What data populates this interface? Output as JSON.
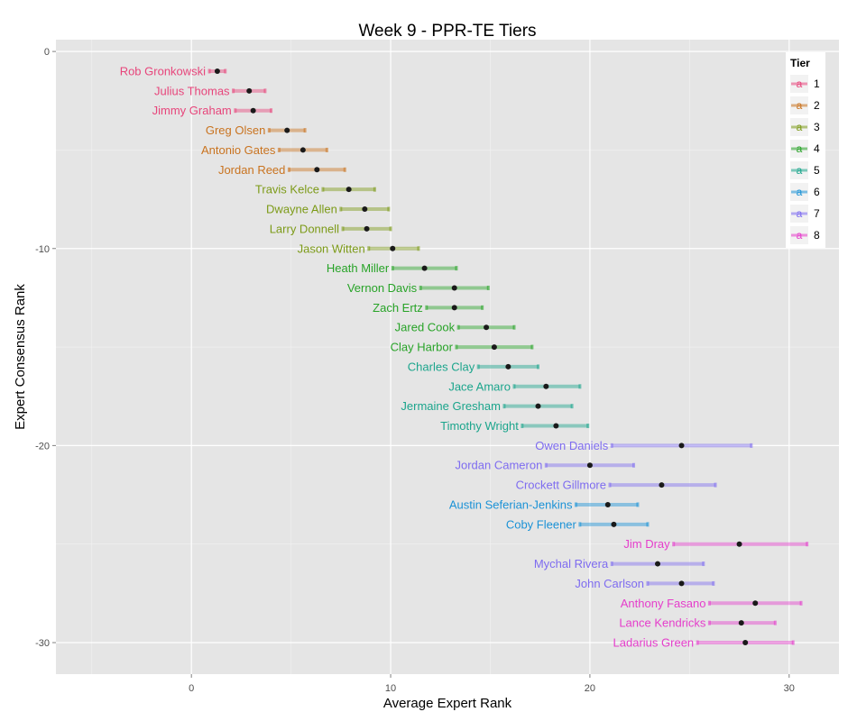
{
  "chart_data": {
    "type": "scatter",
    "title": "Week 9 - PPR-TE Tiers",
    "xlabel": "Average Expert Rank",
    "ylabel": "Expert Consensus Rank",
    "xlim": [
      -6.8,
      32.5
    ],
    "ylim": [
      -31.6,
      0.6
    ],
    "x_ticks": [
      0,
      10,
      20,
      30
    ],
    "y_ticks": [
      0,
      -10,
      -20,
      -30
    ],
    "grid": true,
    "legend_position": "top-right",
    "legend": {
      "title": "Tier",
      "key_glyph": "a",
      "entries": [
        "1",
        "2",
        "3",
        "4",
        "5",
        "6",
        "7",
        "8"
      ]
    },
    "tier_colors": {
      "1": "#E7457B",
      "2": "#C9731F",
      "3": "#7C9A17",
      "4": "#27A327",
      "5": "#1BA58C",
      "6": "#1B92D6",
      "7": "#7E6CF0",
      "8": "#E53DCB"
    },
    "series": [
      {
        "name": "Rob Gronkowski",
        "tier": 1,
        "rank": -1,
        "avg": 1.3,
        "low": 0.9,
        "high": 1.7
      },
      {
        "name": "Julius Thomas",
        "tier": 1,
        "rank": -2,
        "avg": 2.9,
        "low": 2.1,
        "high": 3.7
      },
      {
        "name": "Jimmy Graham",
        "tier": 1,
        "rank": -3,
        "avg": 3.1,
        "low": 2.2,
        "high": 4.0
      },
      {
        "name": "Greg Olsen",
        "tier": 2,
        "rank": -4,
        "avg": 4.8,
        "low": 3.9,
        "high": 5.7
      },
      {
        "name": "Antonio Gates",
        "tier": 2,
        "rank": -5,
        "avg": 5.6,
        "low": 4.4,
        "high": 6.8
      },
      {
        "name": "Jordan Reed",
        "tier": 2,
        "rank": -6,
        "avg": 6.3,
        "low": 4.9,
        "high": 7.7
      },
      {
        "name": "Travis Kelce",
        "tier": 3,
        "rank": -7,
        "avg": 7.9,
        "low": 6.6,
        "high": 9.2
      },
      {
        "name": "Dwayne Allen",
        "tier": 3,
        "rank": -8,
        "avg": 8.7,
        "low": 7.5,
        "high": 9.9
      },
      {
        "name": "Larry Donnell",
        "tier": 3,
        "rank": -9,
        "avg": 8.8,
        "low": 7.6,
        "high": 10.0
      },
      {
        "name": "Jason Witten",
        "tier": 3,
        "rank": -10,
        "avg": 10.1,
        "low": 8.9,
        "high": 11.4
      },
      {
        "name": "Heath Miller",
        "tier": 4,
        "rank": -11,
        "avg": 11.7,
        "low": 10.1,
        "high": 13.3
      },
      {
        "name": "Vernon Davis",
        "tier": 4,
        "rank": -12,
        "avg": 13.2,
        "low": 11.5,
        "high": 14.9
      },
      {
        "name": "Zach Ertz",
        "tier": 4,
        "rank": -13,
        "avg": 13.2,
        "low": 11.8,
        "high": 14.6
      },
      {
        "name": "Jared Cook",
        "tier": 4,
        "rank": -14,
        "avg": 14.8,
        "low": 13.4,
        "high": 16.2
      },
      {
        "name": "Clay Harbor",
        "tier": 4,
        "rank": -15,
        "avg": 15.2,
        "low": 13.3,
        "high": 17.1
      },
      {
        "name": "Charles Clay",
        "tier": 5,
        "rank": -16,
        "avg": 15.9,
        "low": 14.4,
        "high": 17.4
      },
      {
        "name": "Jace Amaro",
        "tier": 5,
        "rank": -17,
        "avg": 17.8,
        "low": 16.2,
        "high": 19.5
      },
      {
        "name": "Jermaine Gresham",
        "tier": 5,
        "rank": -18,
        "avg": 17.4,
        "low": 15.7,
        "high": 19.1
      },
      {
        "name": "Timothy Wright",
        "tier": 5,
        "rank": -19,
        "avg": 18.3,
        "low": 16.6,
        "high": 19.9
      },
      {
        "name": "Owen Daniels",
        "tier": 7,
        "rank": -20,
        "avg": 24.6,
        "low": 21.1,
        "high": 28.1
      },
      {
        "name": "Jordan Cameron",
        "tier": 7,
        "rank": -21,
        "avg": 20.0,
        "low": 17.8,
        "high": 22.2
      },
      {
        "name": "Crockett Gillmore",
        "tier": 7,
        "rank": -22,
        "avg": 23.6,
        "low": 21.0,
        "high": 26.3
      },
      {
        "name": "Austin Seferian-Jenkins",
        "tier": 6,
        "rank": -23,
        "avg": 20.9,
        "low": 19.3,
        "high": 22.4
      },
      {
        "name": "Coby Fleener",
        "tier": 6,
        "rank": -24,
        "avg": 21.2,
        "low": 19.5,
        "high": 22.9
      },
      {
        "name": "Jim Dray",
        "tier": 8,
        "rank": -25,
        "avg": 27.5,
        "low": 24.2,
        "high": 30.9
      },
      {
        "name": "Mychal Rivera",
        "tier": 7,
        "rank": -26,
        "avg": 23.4,
        "low": 21.1,
        "high": 25.7
      },
      {
        "name": "John Carlson",
        "tier": 7,
        "rank": -27,
        "avg": 24.6,
        "low": 22.9,
        "high": 26.2
      },
      {
        "name": "Anthony Fasano",
        "tier": 8,
        "rank": -28,
        "avg": 28.3,
        "low": 26.0,
        "high": 30.6
      },
      {
        "name": "Lance Kendricks",
        "tier": 8,
        "rank": -29,
        "avg": 27.6,
        "low": 26.0,
        "high": 29.3
      },
      {
        "name": "Ladarius Green",
        "tier": 8,
        "rank": -30,
        "avg": 27.8,
        "low": 25.4,
        "high": 30.2
      }
    ]
  }
}
